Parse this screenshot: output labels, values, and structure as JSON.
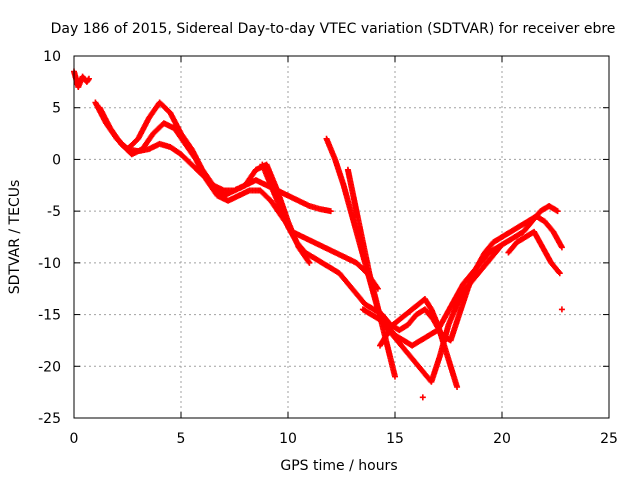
{
  "chart_data": {
    "type": "scatter",
    "title": "Day 186 of 2015, Sidereal Day-to-day VTEC variation (SDTVAR) for receiver ebre",
    "xlabel": "GPS time / hours",
    "ylabel": "SDTVAR / TECUs",
    "xlim": [
      0,
      25
    ],
    "ylim": [
      -25,
      10
    ],
    "xticks": [
      "0",
      "5",
      "10",
      "15",
      "20",
      "25"
    ],
    "yticks": [
      "10",
      "5",
      "0",
      "-5",
      "-10",
      "-15",
      "-20",
      "-25"
    ],
    "grid": true,
    "marker": "+",
    "color": "#ff0000",
    "series": [
      {
        "x": [
          0.0,
          0.2,
          0.4,
          0.6,
          0.7
        ],
        "y": [
          8.5,
          7.0,
          8.0,
          7.5,
          7.8
        ]
      },
      {
        "x": [
          1.0,
          1.5,
          2.0,
          2.5,
          3.0,
          3.5,
          4.0,
          4.5,
          5.0,
          5.5,
          6.0,
          6.5,
          7.0,
          7.5,
          8.0,
          8.5,
          9.0,
          9.5,
          10.0,
          10.5,
          11.0,
          11.5,
          12.0
        ],
        "y": [
          5.5,
          3.5,
          2.0,
          1.0,
          2.0,
          4.0,
          5.5,
          4.5,
          2.5,
          1.0,
          -1.0,
          -2.5,
          -3.5,
          -3.0,
          -2.5,
          -2.0,
          -2.5,
          -3.0,
          -3.5,
          -4.0,
          -4.5,
          -4.8,
          -5.0
        ]
      },
      {
        "x": [
          1.2,
          1.7,
          2.2,
          2.7,
          3.2,
          3.7,
          4.2,
          4.7,
          5.2,
          5.7,
          6.2,
          6.7,
          7.2,
          7.7,
          8.2,
          8.7,
          9.2,
          9.7,
          10.2,
          10.7,
          11.2,
          11.7,
          12.2,
          12.7,
          13.2,
          13.7,
          14.2
        ],
        "y": [
          5.0,
          3.0,
          1.5,
          0.5,
          1.0,
          2.5,
          3.5,
          3.0,
          1.5,
          0.0,
          -2.0,
          -3.5,
          -4.0,
          -3.5,
          -3.0,
          -3.0,
          -4.0,
          -5.5,
          -7.0,
          -7.5,
          -8.0,
          -8.5,
          -9.0,
          -9.5,
          -10.0,
          -11.0,
          -12.5
        ]
      },
      {
        "x": [
          2.0,
          2.5,
          3.0,
          3.5,
          4.0,
          4.5,
          5.0,
          5.5,
          6.0,
          6.5,
          7.0,
          7.5,
          8.0,
          8.5,
          9.0,
          9.5,
          10.0,
          10.5,
          11.0
        ],
        "y": [
          2.0,
          1.0,
          0.8,
          1.0,
          1.5,
          1.2,
          0.5,
          -0.5,
          -1.5,
          -2.5,
          -3.0,
          -3.0,
          -2.5,
          -1.0,
          -0.5,
          -3.0,
          -6.0,
          -8.5,
          -10.0
        ]
      },
      {
        "x": [
          8.8,
          9.2,
          9.6,
          10.0,
          10.4,
          10.8,
          11.2,
          11.6,
          12.0,
          12.4,
          12.8,
          13.2,
          13.6,
          14.0,
          14.4,
          14.8,
          15.2,
          15.6,
          16.0,
          16.4,
          16.8,
          17.2,
          17.6,
          18.0,
          18.4,
          18.8,
          19.2,
          19.6,
          20.0,
          20.4,
          20.8,
          21.2,
          21.6,
          22.0,
          22.4,
          22.8
        ],
        "y": [
          -0.5,
          -2.5,
          -4.5,
          -6.5,
          -8.0,
          -9.0,
          -9.5,
          -10.0,
          -10.5,
          -11.0,
          -12.0,
          -13.0,
          -14.0,
          -14.5,
          -15.0,
          -16.0,
          -16.5,
          -16.0,
          -15.0,
          -14.5,
          -15.5,
          -17.0,
          -17.5,
          -15.0,
          -12.5,
          -10.5,
          -9.0,
          -8.0,
          -7.5,
          -7.0,
          -6.5,
          -6.0,
          -5.5,
          -6.0,
          -7.0,
          -8.5
        ]
      },
      {
        "x": [
          11.8,
          12.2,
          12.6,
          13.0,
          13.4,
          13.8,
          14.2,
          14.6,
          15.0,
          15.4,
          15.8,
          16.2,
          16.6,
          17.0,
          17.4,
          17.8,
          18.2,
          18.6,
          19.0,
          19.4,
          19.8,
          20.2,
          20.6,
          21.0,
          21.4,
          21.8,
          22.2,
          22.6
        ],
        "y": [
          2.0,
          0.0,
          -2.5,
          -5.5,
          -8.5,
          -11.5,
          -14.5,
          -16.0,
          -17.0,
          -17.5,
          -18.0,
          -17.5,
          -17.0,
          -16.5,
          -15.0,
          -13.5,
          -12.0,
          -11.0,
          -10.0,
          -9.0,
          -8.5,
          -8.0,
          -7.5,
          -7.0,
          -6.0,
          -5.0,
          -4.5,
          -5.0
        ]
      },
      {
        "x": [
          12.8,
          13.0,
          13.2,
          13.5,
          13.8,
          14.1,
          14.4,
          14.7,
          15.0
        ],
        "y": [
          -1.0,
          -3.0,
          -5.0,
          -8.0,
          -11.0,
          -13.5,
          -16.0,
          -18.5,
          -21.0
        ]
      },
      {
        "x": [
          13.5,
          13.9,
          14.3,
          14.7,
          15.1,
          15.5,
          15.9,
          16.3,
          16.7,
          17.1,
          17.5,
          17.9,
          18.3,
          18.7,
          19.1,
          19.5,
          19.9
        ],
        "y": [
          -14.5,
          -15.0,
          -15.5,
          -16.5,
          -17.5,
          -18.5,
          -19.5,
          -20.5,
          -21.5,
          -19.0,
          -16.0,
          -14.0,
          -12.5,
          -11.5,
          -10.5,
          -9.5,
          -8.5
        ]
      },
      {
        "x": [
          14.3,
          14.6,
          14.9,
          15.2,
          15.5,
          15.8,
          16.1,
          16.4,
          16.7,
          17.0,
          17.3,
          17.6,
          17.9
        ],
        "y": [
          -18.0,
          -17.0,
          -16.0,
          -15.5,
          -15.0,
          -14.5,
          -14.0,
          -13.5,
          -14.5,
          -16.0,
          -18.0,
          -20.0,
          -22.0
        ]
      },
      {
        "x": [
          20.3,
          20.7,
          21.1,
          21.5,
          21.9,
          22.3,
          22.7
        ],
        "y": [
          -9.0,
          -8.0,
          -7.5,
          -7.0,
          -8.5,
          -10.0,
          -11.0
        ]
      },
      {
        "x": [
          16.3,
          22.8
        ],
        "y": [
          -23.0,
          -14.5
        ]
      }
    ]
  }
}
